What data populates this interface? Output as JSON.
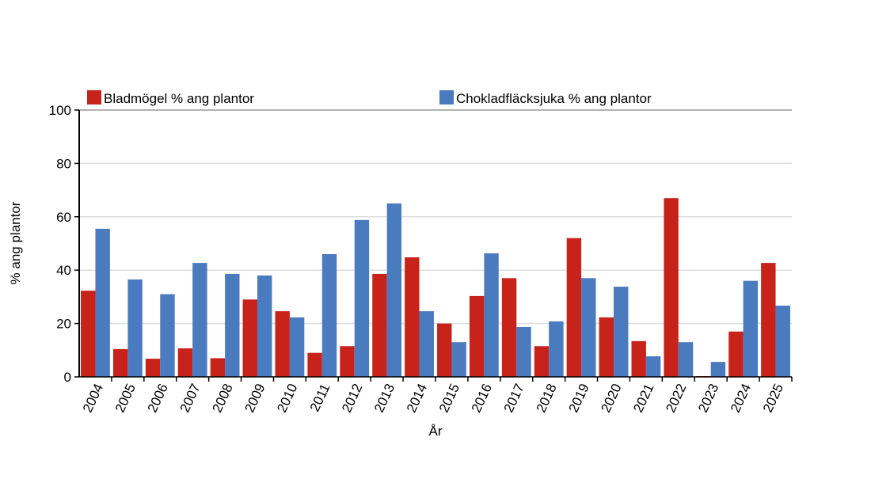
{
  "chart_data": {
    "type": "bar",
    "x_label": "År",
    "y_label": "% ang plantor",
    "categories": [
      "2004",
      "2005",
      "2006",
      "2007",
      "2008",
      "2009",
      "2010",
      "2011",
      "2012",
      "2013",
      "2014",
      "2015",
      "2016",
      "2017",
      "2018",
      "2019",
      "2020",
      "2021",
      "2022",
      "2023",
      "2024",
      "2025"
    ],
    "series": [
      {
        "name": "Bladmögel % ang plantor",
        "color": "#c8231a",
        "values": [
          32.3,
          10.4,
          6.8,
          10.7,
          7,
          29,
          24.6,
          9,
          11.5,
          38.6,
          44.8,
          20,
          30.3,
          37,
          11.5,
          52,
          22.3,
          13.4,
          67,
          0.3,
          17,
          42.7
        ]
      },
      {
        "name": "Chokladfläcksjuka % ang plantor",
        "color": "#4b7bbf",
        "values": [
          55.5,
          36.5,
          31,
          42.7,
          38.6,
          38,
          22.3,
          46,
          58.8,
          65,
          24.6,
          13,
          46.3,
          18.7,
          20.8,
          37,
          33.8,
          7.7,
          13,
          5.6,
          36,
          26.7
        ]
      }
    ],
    "ylim": [
      0,
      100
    ],
    "yticks": [
      0,
      20,
      40,
      60,
      80,
      100
    ],
    "grid": true
  }
}
